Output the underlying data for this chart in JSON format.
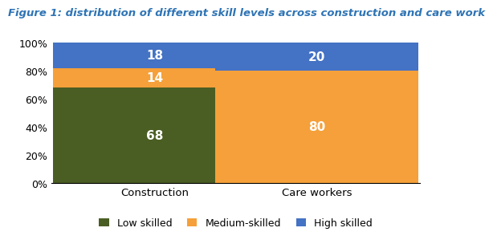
{
  "title": "Figure 1: distribution of different skill levels across construction and care work",
  "categories": [
    "Construction",
    "Care workers"
  ],
  "low_skilled": [
    68,
    0
  ],
  "medium_skilled": [
    14,
    80
  ],
  "high_skilled": [
    18,
    20
  ],
  "low_color": "#4a5e23",
  "medium_color": "#f5a03a",
  "high_color": "#4472c4",
  "legend_labels": [
    "Low skilled",
    "Medium-skilled",
    "High skilled"
  ],
  "ylabel_ticks": [
    "0%",
    "20%",
    "40%",
    "60%",
    "80%",
    "100%"
  ],
  "ytick_vals": [
    0,
    20,
    40,
    60,
    80,
    100
  ],
  "ylim": [
    0,
    100
  ],
  "label_fontsize": 11,
  "title_fontsize": 9.5,
  "bar_width": 0.55,
  "background_color": "#ffffff",
  "label_color": "#ffffff",
  "title_color": "#2e74b5"
}
